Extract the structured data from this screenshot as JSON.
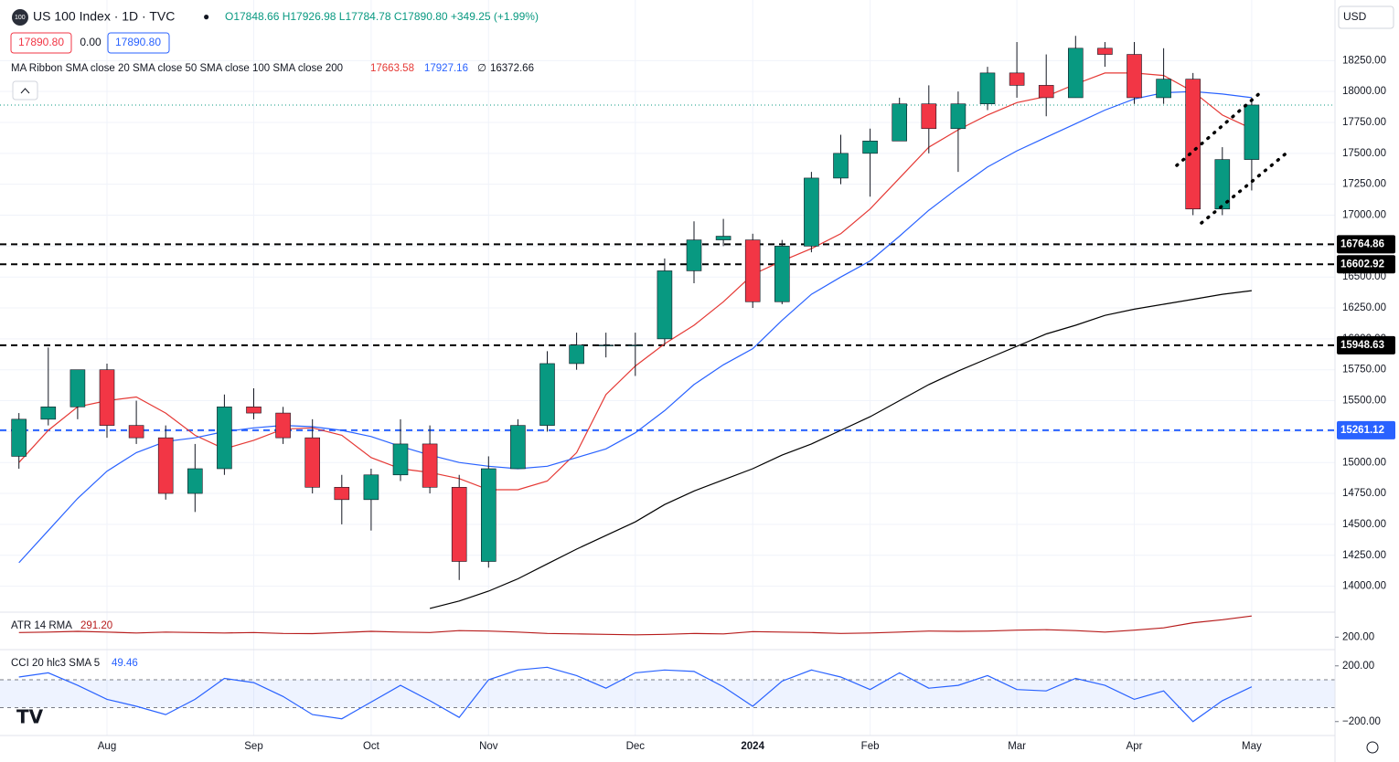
{
  "header": {
    "symbol": "US 100 Index · 1D · TVC",
    "ohlc": "O17848.66 H17926.98 L17784.78 C17890.80 +349.25 (+1.99%)",
    "bid": "17890.80",
    "spread": "0.00",
    "ask": "17890.80",
    "ma_legend": "MA Ribbon SMA close 20 SMA close 50 SMA close 100 SMA close 200",
    "ma_values": [
      "17663.58",
      "17927.16",
      "∅",
      "16372.66"
    ],
    "currency": "USD"
  },
  "chart_data": [
    {
      "type": "candlestick",
      "categories": [
        null,
        null,
        null,
        "Aug",
        null,
        null,
        null,
        null,
        "Sep",
        null,
        null,
        null,
        "Oct",
        null,
        null,
        null,
        "Nov",
        null,
        null,
        null,
        null,
        "Dec",
        null,
        null,
        null,
        "2024",
        null,
        null,
        null,
        "Feb",
        null,
        null,
        null,
        null,
        "Mar",
        null,
        null,
        null,
        "Apr",
        null,
        null,
        null,
        "May"
      ],
      "open": [
        15050,
        15350,
        15450,
        15750,
        15300,
        15200,
        14750,
        14950,
        15450,
        15400,
        15200,
        14800,
        14700,
        14900,
        15150,
        14800,
        14200,
        14950,
        15300,
        15800,
        15950,
        15950,
        16000,
        16550,
        16800,
        16800,
        16300,
        16750,
        17300,
        17500,
        17600,
        17900,
        17700,
        17900,
        18150,
        18050,
        17950,
        18350,
        18300,
        17950,
        18100,
        17050,
        17450
      ],
      "high": [
        15400,
        15930,
        15750,
        15800,
        15500,
        15300,
        15150,
        15550,
        15600,
        15450,
        15350,
        14900,
        14950,
        15350,
        15300,
        14900,
        15050,
        15350,
        15900,
        16050,
        16050,
        16050,
        16650,
        16950,
        16970,
        16850,
        16800,
        17350,
        17650,
        17700,
        17950,
        18050,
        18000,
        18200,
        18400,
        18300,
        18450,
        18400,
        18400,
        18350,
        18150,
        17550,
        17950
      ],
      "low": [
        14950,
        15300,
        15350,
        15200,
        15150,
        14700,
        14600,
        14900,
        15350,
        15150,
        14750,
        14500,
        14450,
        14850,
        14750,
        14050,
        14150,
        14950,
        15250,
        15750,
        15850,
        15700,
        15950,
        16450,
        16750,
        16250,
        16280,
        16700,
        17250,
        17150,
        17600,
        17500,
        17350,
        17850,
        17950,
        17800,
        17950,
        18200,
        17900,
        17900,
        17000,
        17000,
        17200
      ],
      "close": [
        15350,
        15450,
        15750,
        15300,
        15200,
        14750,
        14950,
        15450,
        15400,
        15200,
        14800,
        14700,
        14900,
        15150,
        14800,
        14200,
        14950,
        15300,
        15800,
        15950,
        15950,
        15950,
        16550,
        16800,
        16830,
        16300,
        16750,
        17300,
        17500,
        17600,
        17900,
        17700,
        17900,
        18150,
        18050,
        17950,
        18350,
        18300,
        17950,
        18100,
        17050,
        17450,
        17890.8
      ],
      "up_color": "#089981",
      "down_color": "#f23645",
      "series": [
        {
          "color": "#e53935",
          "values": [
            15000,
            15260,
            15450,
            15500,
            15530,
            15400,
            15220,
            15110,
            15180,
            15270,
            15280,
            15220,
            15040,
            14950,
            14920,
            14870,
            14780,
            14780,
            14850,
            15080,
            15550,
            15780,
            15960,
            16110,
            16300,
            16520,
            16630,
            16730,
            16850,
            17050,
            17300,
            17550,
            17690,
            17810,
            17910,
            17960,
            18060,
            18150,
            18150,
            18130,
            18000,
            17810,
            17700
          ]
        },
        {
          "color": "#2962ff",
          "values": [
            14190,
            14450,
            14710,
            14930,
            15080,
            15170,
            15200,
            15250,
            15280,
            15300,
            15290,
            15260,
            15210,
            15130,
            15060,
            15000,
            14970,
            14950,
            14970,
            15040,
            15110,
            15240,
            15420,
            15630,
            15790,
            15920,
            16150,
            16360,
            16500,
            16630,
            16830,
            17040,
            17220,
            17390,
            17520,
            17630,
            17740,
            17850,
            17940,
            17990,
            18000,
            17980,
            17950
          ]
        },
        {
          "color": "#000000",
          "values": [
            null,
            null,
            null,
            null,
            null,
            null,
            null,
            null,
            null,
            null,
            null,
            null,
            null,
            null,
            13820,
            13880,
            13960,
            14060,
            14180,
            14300,
            14410,
            14520,
            14660,
            14770,
            14860,
            14950,
            15060,
            15150,
            15260,
            15370,
            15500,
            15630,
            15740,
            15840,
            15940,
            16040,
            16110,
            16190,
            16240,
            16280,
            16320,
            16360,
            16390
          ]
        }
      ],
      "hlines": [
        {
          "value": 16764.86,
          "color": "#000000"
        },
        {
          "value": 16602.92,
          "color": "#000000"
        },
        {
          "value": 15948.63,
          "color": "#000000"
        },
        {
          "value": 15261.12,
          "color": "#2962ff"
        }
      ],
      "ylim": [
        13790,
        18740
      ],
      "yticks": [
        {
          "value": 18250,
          "label": "18250.00"
        },
        {
          "value": 18000,
          "label": "18000.00"
        },
        {
          "value": 17750,
          "label": "17750.00"
        },
        {
          "value": 17500,
          "label": "17500.00"
        },
        {
          "value": 17250,
          "label": "17250.00"
        },
        {
          "value": 17000,
          "label": "17000.00"
        },
        {
          "value": 16750,
          "label": "16750.00"
        },
        {
          "value": 16500,
          "label": "16500.00"
        },
        {
          "value": 16250,
          "label": "16250.00"
        },
        {
          "value": 16000,
          "label": "16000.00"
        },
        {
          "value": 15750,
          "label": "15750.00"
        },
        {
          "value": 15500,
          "label": "15500.00"
        },
        {
          "value": 15250,
          "label": "15250.00"
        },
        {
          "value": 15000,
          "label": "15000.00"
        },
        {
          "value": 14750,
          "label": "14750.00"
        },
        {
          "value": 14500,
          "label": "14500.00"
        },
        {
          "value": 14250,
          "label": "14250.00"
        },
        {
          "value": 14000,
          "label": "14000.00"
        }
      ],
      "grid": true
    },
    {
      "type": "line",
      "title": "ATR 14 RMA",
      "last_label": "291.20",
      "color": "#b71c1c",
      "values": [
        220,
        222,
        225,
        222,
        218,
        222,
        220,
        218,
        220,
        216,
        215,
        220,
        225,
        222,
        220,
        228,
        226,
        222,
        216,
        214,
        212,
        210,
        212,
        216,
        214,
        224,
        222,
        220,
        216,
        218,
        222,
        226,
        225,
        226,
        230,
        232,
        228,
        222,
        230,
        240,
        262,
        275,
        291.2
      ],
      "ylim": [
        150,
        300
      ],
      "yticks": [
        {
          "value": 200,
          "label": "200.00"
        }
      ]
    },
    {
      "type": "line",
      "title": "CCI 20 hlc3 SMA 5",
      "last_label": "49.46",
      "color": "#2962ff",
      "values": [
        120,
        150,
        60,
        -40,
        -90,
        -150,
        -40,
        110,
        80,
        -20,
        -150,
        -180,
        -60,
        60,
        -50,
        -170,
        100,
        170,
        190,
        130,
        40,
        150,
        170,
        160,
        50,
        -90,
        90,
        170,
        120,
        30,
        150,
        40,
        60,
        130,
        30,
        20,
        110,
        60,
        -40,
        20,
        -200,
        -50,
        49.46
      ],
      "band": [
        -100,
        100
      ],
      "ylim": [
        -300,
        310
      ],
      "yticks": [
        {
          "value": 200,
          "label": "200.00"
        },
        {
          "value": -200,
          "label": "−200.00"
        }
      ]
    }
  ]
}
